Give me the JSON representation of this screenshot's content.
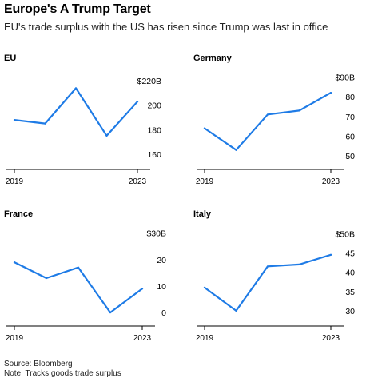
{
  "title": "Europe's A Trump Target",
  "subtitle": "EU's trade surplus with the US has risen since Trump was last in office",
  "footer": {
    "source": "Source: Bloomberg",
    "note": "Note: Tracks goods trade surplus"
  },
  "colors": {
    "line": "#1e7be6",
    "axis": "#000000",
    "text": "#000000"
  },
  "chart_data": [
    {
      "type": "line",
      "title": "EU",
      "x": [
        2019,
        2020,
        2021,
        2022,
        2023
      ],
      "x_tick_labels": [
        "2019",
        "2023"
      ],
      "y_ticks": [
        "$220B",
        "200",
        "180",
        "160"
      ],
      "y_tick_values": [
        220,
        200,
        180,
        160
      ],
      "ylim": [
        152,
        228
      ],
      "values": [
        188,
        185,
        214,
        175,
        203
      ]
    },
    {
      "type": "line",
      "title": "Germany",
      "x": [
        2019,
        2020,
        2021,
        2022,
        2023
      ],
      "x_tick_labels": [
        "2019",
        "2023"
      ],
      "y_ticks": [
        "$90B",
        "80",
        "70",
        "60",
        "50"
      ],
      "y_tick_values": [
        90,
        80,
        70,
        60,
        50
      ],
      "ylim": [
        46,
        93
      ],
      "values": [
        64,
        53,
        71,
        73,
        82
      ]
    },
    {
      "type": "line",
      "title": "France",
      "x": [
        2019,
        2020,
        2021,
        2022,
        2023
      ],
      "x_tick_labels": [
        "2019",
        "2023"
      ],
      "y_ticks": [
        "$30B",
        "20",
        "10",
        "0"
      ],
      "y_tick_values": [
        30,
        20,
        10,
        0
      ],
      "ylim": [
        -3,
        32
      ],
      "values": [
        19,
        13,
        17,
        0,
        9
      ]
    },
    {
      "type": "line",
      "title": "Italy",
      "x": [
        2019,
        2020,
        2021,
        2022,
        2023
      ],
      "x_tick_labels": [
        "2019",
        "2023"
      ],
      "y_ticks": [
        "$50B",
        "45",
        "40",
        "35",
        "30"
      ],
      "y_tick_values": [
        50,
        45,
        40,
        35,
        30
      ],
      "ylim": [
        27.5,
        51.5
      ],
      "values": [
        36,
        30,
        41.5,
        42,
        44.5
      ]
    }
  ]
}
